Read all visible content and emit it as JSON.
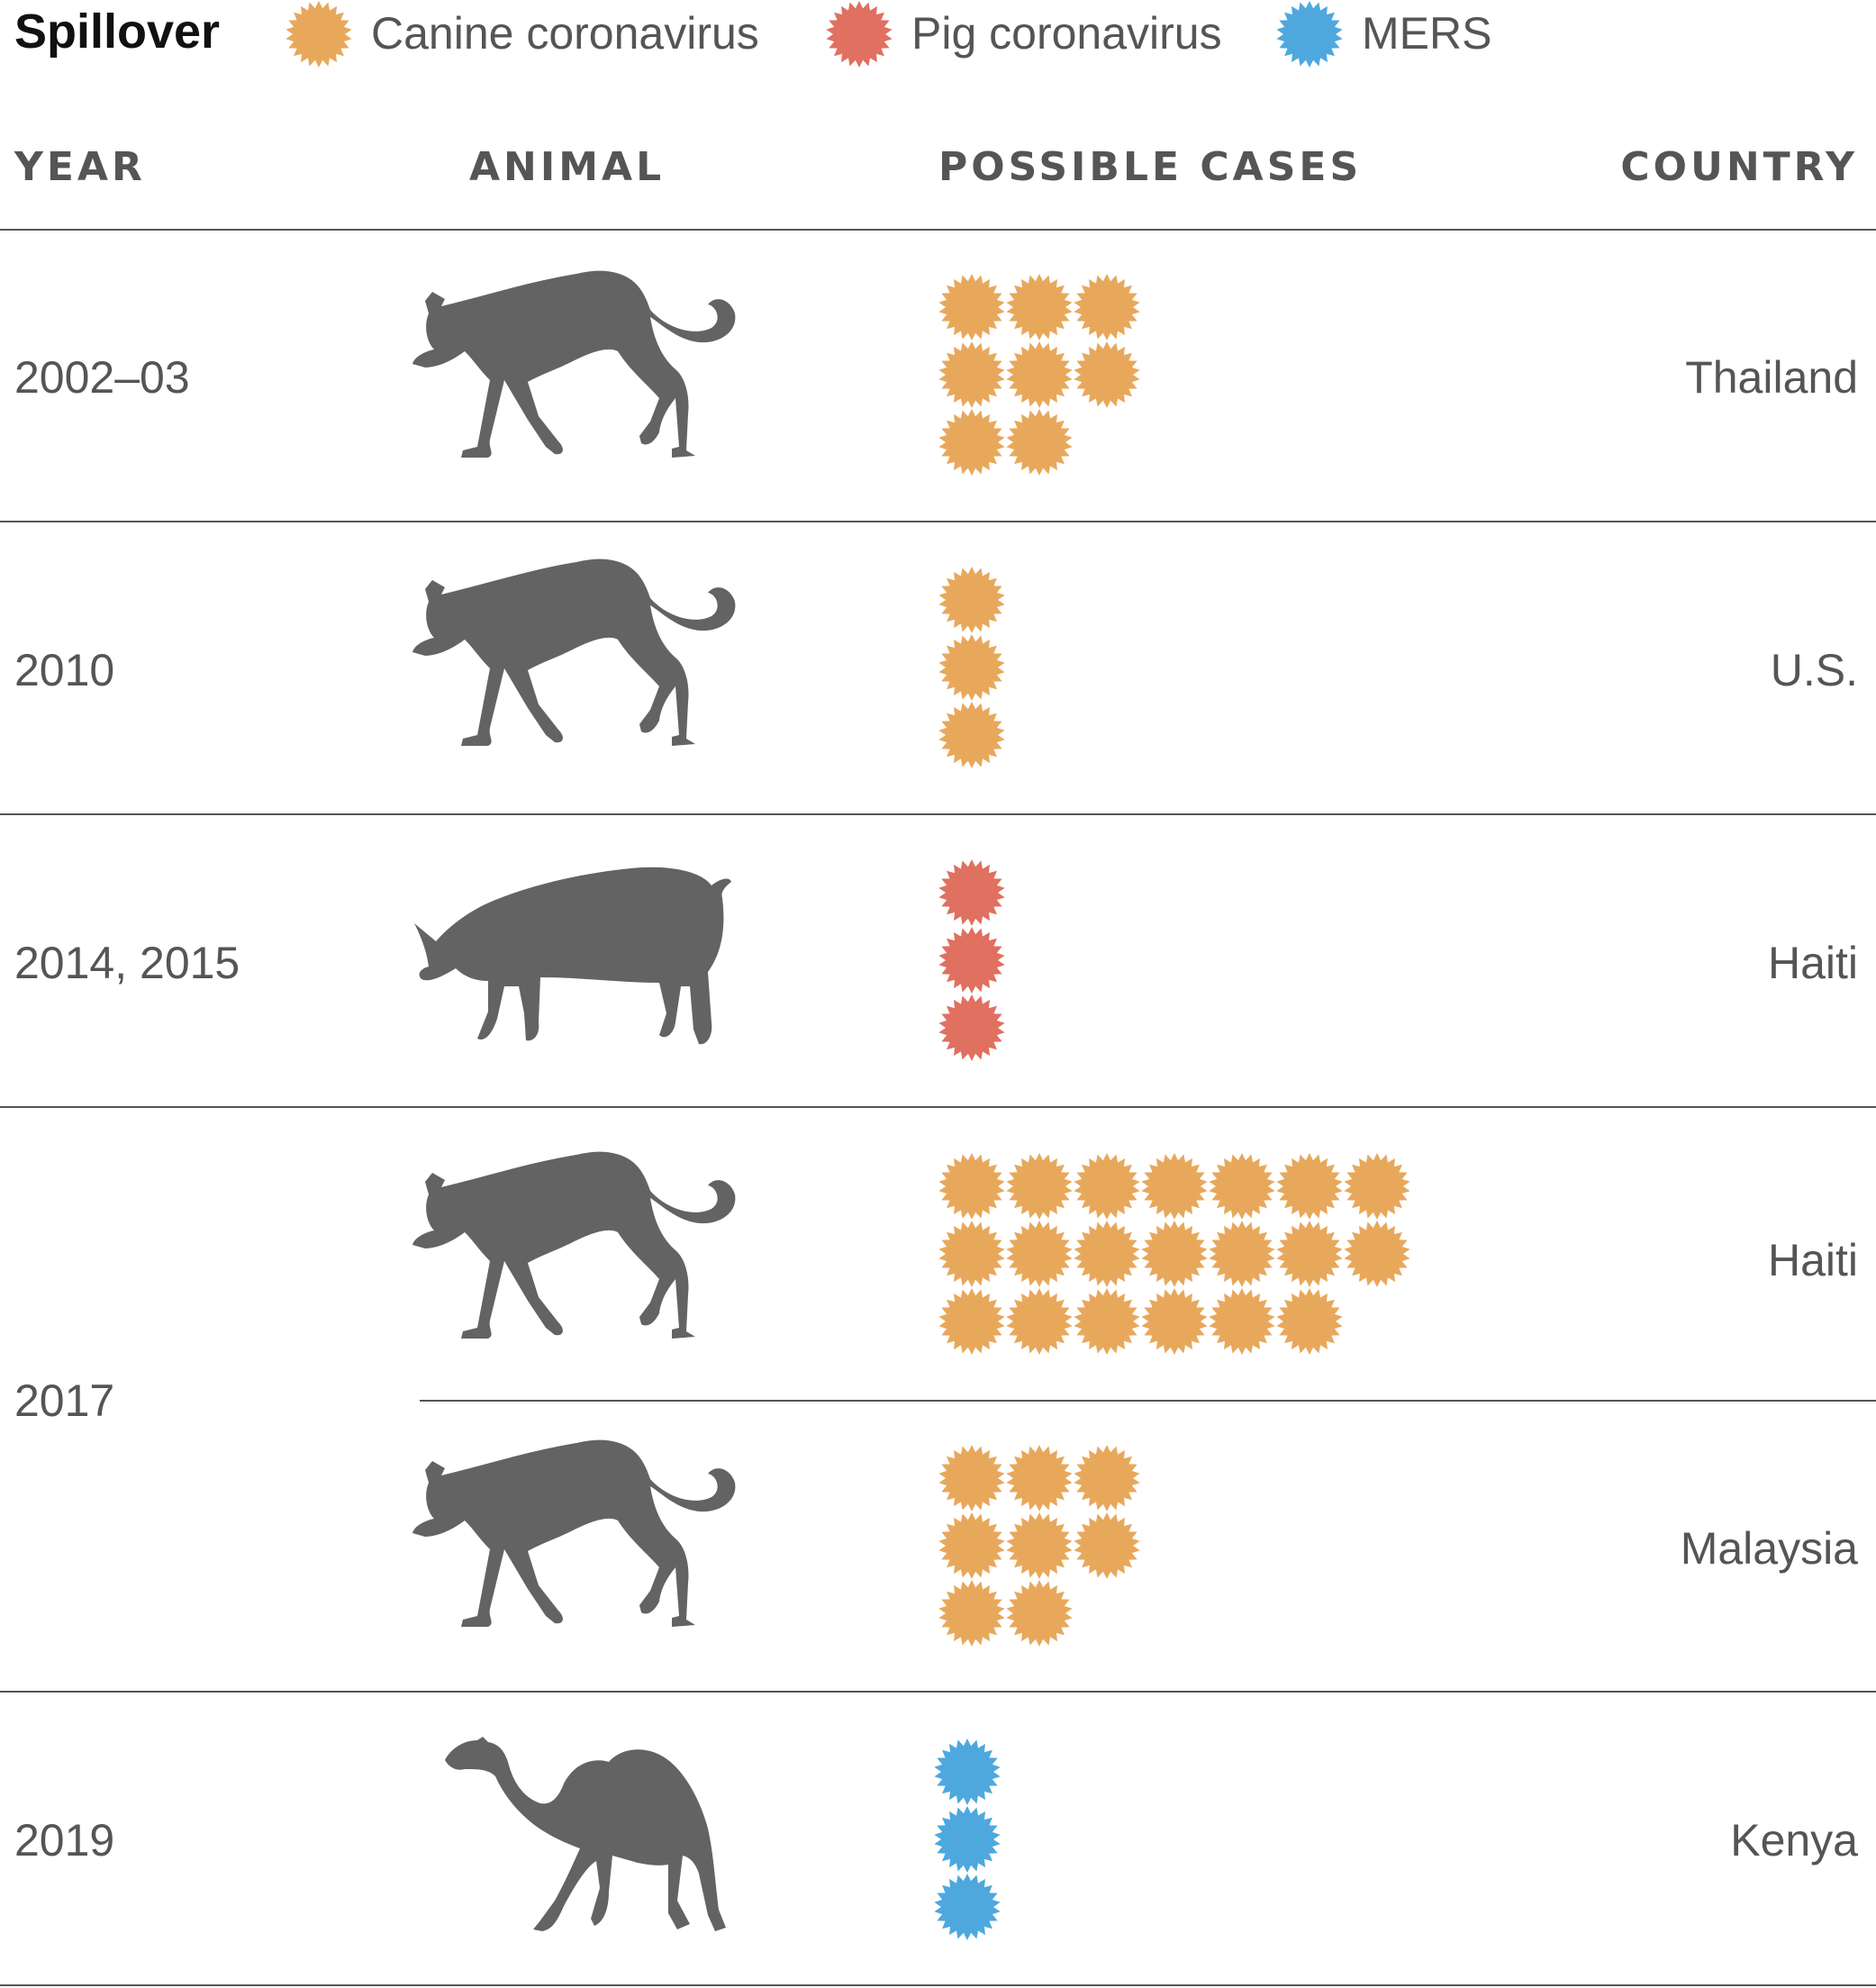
{
  "legend": {
    "title": "Spillover",
    "items": [
      {
        "label": "Canine coronavirus",
        "color": "#E8A85C",
        "icon": "starburst-icon"
      },
      {
        "label": "Pig coronavirus",
        "color": "#E07060",
        "icon": "starburst-icon"
      },
      {
        "label": "MERS",
        "color": "#4EA8DE",
        "icon": "starburst-icon"
      }
    ]
  },
  "columns": {
    "year": "YEAR",
    "animal": "ANIMAL",
    "cases": "POSSIBLE CASES",
    "country": "COUNTRY"
  },
  "chart_data": {
    "type": "table",
    "title": "Spillover",
    "rows": [
      {
        "year": "2002–03",
        "animal": "dog",
        "cases": 8,
        "virus": "Canine coronavirus",
        "country": "Thailand"
      },
      {
        "year": "2010",
        "animal": "dog",
        "cases": 3,
        "virus": "Canine coronavirus",
        "country": "U.S."
      },
      {
        "year": "2014, 2015",
        "animal": "pig",
        "cases": 3,
        "virus": "Pig coronavirus",
        "country": "Haiti"
      },
      {
        "year": "2017",
        "animal": "dog",
        "cases": 20,
        "virus": "Canine coronavirus",
        "country": "Haiti"
      },
      {
        "year": "2017",
        "animal": "dog",
        "cases": 8,
        "virus": "Canine coronavirus",
        "country": "Malaysia"
      },
      {
        "year": "2019",
        "animal": "camel",
        "cases": 3,
        "virus": "MERS",
        "country": "Kenya"
      }
    ]
  }
}
